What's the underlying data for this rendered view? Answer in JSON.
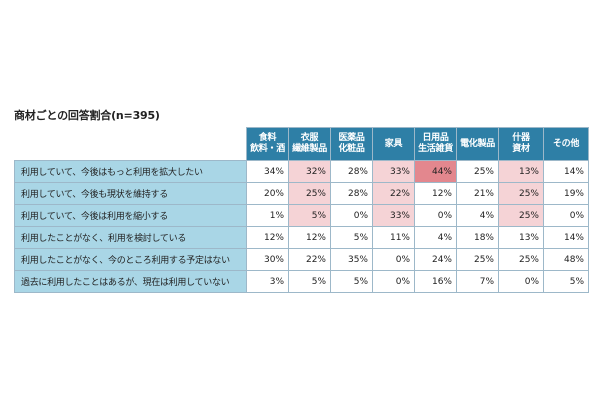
{
  "title": "商材ごとの回答割合(n=395)",
  "colors": {
    "header": "#2e7fa6",
    "row_label": "#a9d6e6",
    "mid_highlight": "#f5d3d6",
    "high_highlight": "#e3878e"
  },
  "chart_data": {
    "type": "table",
    "title": "商材ごとの回答割合(n=395)",
    "columns": [
      "食料\n飲料・酒",
      "衣服\n繊維製品",
      "医薬品\n化粧品",
      "家具",
      "日用品\n生活雑貨",
      "電化製品",
      "什器\n資材",
      "その他"
    ],
    "rows": [
      {
        "label": "利用していて、今後はもっと利用を拡大したい",
        "values": [
          "34%",
          "32%",
          "28%",
          "33%",
          "44%",
          "25%",
          "13%",
          "14%"
        ],
        "highlight": [
          "",
          "mid",
          "",
          "mid",
          "high",
          "",
          "mid",
          ""
        ]
      },
      {
        "label": "利用していて、今後も現状を維持する",
        "values": [
          "20%",
          "25%",
          "28%",
          "22%",
          "12%",
          "21%",
          "25%",
          "19%"
        ],
        "highlight": [
          "",
          "mid",
          "",
          "mid",
          "",
          "",
          "mid",
          ""
        ]
      },
      {
        "label": "利用していて、今後は利用を縮小する",
        "values": [
          "1%",
          "5%",
          "0%",
          "33%",
          "0%",
          "4%",
          "25%",
          "0%"
        ],
        "highlight": [
          "",
          "mid",
          "",
          "mid",
          "",
          "",
          "mid",
          ""
        ]
      },
      {
        "label": "利用したことがなく、利用を検討している",
        "values": [
          "12%",
          "12%",
          "5%",
          "11%",
          "4%",
          "18%",
          "13%",
          "14%"
        ],
        "highlight": [
          "",
          "",
          "",
          "",
          "",
          "",
          "",
          ""
        ]
      },
      {
        "label": "利用したことがなく、今のところ利用する予定はない",
        "values": [
          "30%",
          "22%",
          "35%",
          "0%",
          "24%",
          "25%",
          "25%",
          "48%"
        ],
        "highlight": [
          "",
          "",
          "",
          "",
          "",
          "",
          "",
          ""
        ]
      },
      {
        "label": "過去に利用したことはあるが、現在は利用していない",
        "values": [
          "3%",
          "5%",
          "5%",
          "0%",
          "16%",
          "7%",
          "0%",
          "5%"
        ],
        "highlight": [
          "",
          "",
          "",
          "",
          "",
          "",
          "",
          ""
        ]
      }
    ]
  }
}
